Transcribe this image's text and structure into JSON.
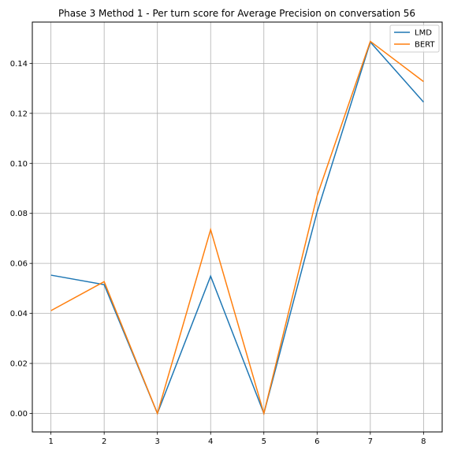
{
  "chart_data": {
    "type": "line",
    "title": "Phase 3 Method 1 - Per turn score for Average Precision on conversation 56",
    "xlabel": "",
    "ylabel": "",
    "x": [
      1,
      2,
      3,
      4,
      5,
      6,
      7,
      8
    ],
    "xlim": [
      0.65,
      8.35
    ],
    "ylim": [
      -0.0074,
      0.1565
    ],
    "xticks": [
      1,
      2,
      3,
      4,
      5,
      6,
      7,
      8
    ],
    "yticks": [
      0.0,
      0.02,
      0.04,
      0.06,
      0.08,
      0.1,
      0.12,
      0.14
    ],
    "ytick_labels": [
      "0.00",
      "0.02",
      "0.04",
      "0.06",
      "0.08",
      "0.10",
      "0.12",
      "0.14"
    ],
    "grid": true,
    "legend_position": "top-right",
    "series": [
      {
        "name": "LMD",
        "color": "#1f77b4",
        "values": [
          0.0553,
          0.0515,
          0.0,
          0.0549,
          0.0,
          0.0805,
          0.1485,
          0.1245
        ]
      },
      {
        "name": "BERT",
        "color": "#ff7f0e",
        "values": [
          0.0411,
          0.0527,
          0.0,
          0.0735,
          0.0,
          0.087,
          0.1488,
          0.1327
        ]
      }
    ]
  }
}
